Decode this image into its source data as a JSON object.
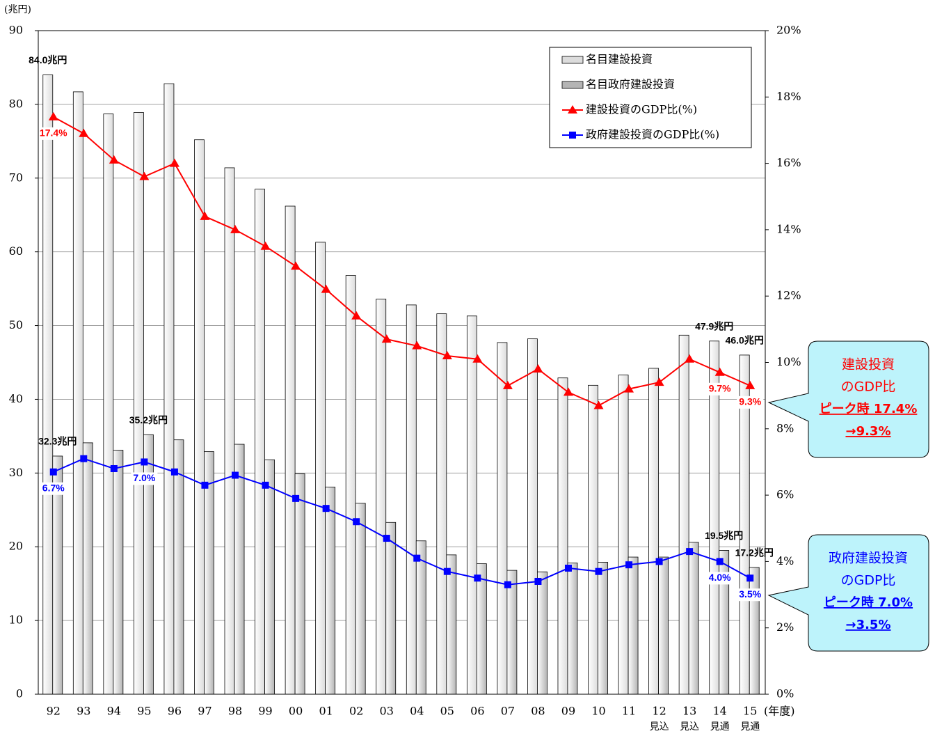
{
  "chart_data": {
    "type": "bar",
    "y_label": "(兆円)",
    "x_label": "(年度)",
    "categories": [
      "92",
      "93",
      "94",
      "95",
      "96",
      "97",
      "98",
      "99",
      "00",
      "01",
      "02",
      "03",
      "04",
      "05",
      "06",
      "07",
      "08",
      "09",
      "10",
      "11",
      "12",
      "13",
      "14",
      "15"
    ],
    "category_notes": [
      null,
      null,
      null,
      null,
      null,
      null,
      null,
      null,
      null,
      null,
      null,
      null,
      null,
      null,
      null,
      null,
      null,
      null,
      null,
      null,
      "見込",
      "見込",
      "見通",
      "見通"
    ],
    "ylim": [
      0,
      90
    ],
    "yticks": [
      0,
      10,
      20,
      30,
      40,
      50,
      60,
      70,
      80,
      90
    ],
    "y2lim": [
      0,
      20
    ],
    "y2ticks": [
      {
        "value": 0,
        "label": "0%"
      },
      {
        "value": 2,
        "label": "2%"
      },
      {
        "value": 4,
        "label": "4%"
      },
      {
        "value": 6,
        "label": "6%"
      },
      {
        "value": 8,
        "label": "8%"
      },
      {
        "value": 10,
        "label": "10%"
      },
      {
        "value": 12,
        "label": "12%"
      },
      {
        "value": 14,
        "label": "14%"
      },
      {
        "value": 16,
        "label": "16%"
      },
      {
        "value": 18,
        "label": "18%"
      },
      {
        "value": 20,
        "label": "20%"
      }
    ],
    "grid": true,
    "legend": "top-right",
    "series": [
      {
        "name": "名目建設投資",
        "type": "bar",
        "color": "#dcdcdc",
        "values": [
          84.0,
          81.7,
          78.7,
          78.9,
          82.8,
          75.2,
          71.4,
          68.5,
          66.2,
          61.3,
          56.8,
          53.6,
          52.8,
          51.6,
          51.3,
          47.7,
          48.2,
          42.9,
          41.9,
          43.3,
          44.2,
          48.7,
          47.9,
          46.0
        ],
        "value_labels": [
          "84.0兆円",
          null,
          null,
          null,
          null,
          null,
          null,
          null,
          null,
          null,
          null,
          null,
          null,
          null,
          null,
          null,
          null,
          null,
          null,
          null,
          null,
          null,
          "47.9兆円",
          "46.0兆円"
        ]
      },
      {
        "name": "名目政府建設投資",
        "type": "bar",
        "color": "#b4b4b4",
        "values": [
          32.3,
          34.1,
          33.1,
          35.2,
          34.5,
          32.9,
          33.9,
          31.8,
          29.9,
          28.1,
          25.9,
          23.3,
          20.8,
          18.9,
          17.7,
          16.8,
          16.6,
          17.8,
          17.9,
          18.6,
          18.6,
          20.6,
          19.5,
          17.2
        ],
        "value_labels": [
          "32.3兆円",
          null,
          null,
          "35.2兆円",
          null,
          null,
          null,
          null,
          null,
          null,
          null,
          null,
          null,
          null,
          null,
          null,
          null,
          null,
          null,
          null,
          null,
          null,
          "19.5兆円",
          "17.2兆円"
        ]
      },
      {
        "name": "建設投資のGDP比(%)",
        "type": "line",
        "axis": "y2",
        "color": "#ff0000",
        "marker": "triangle",
        "values": [
          17.4,
          16.9,
          16.1,
          15.6,
          16.0,
          14.4,
          14.0,
          13.5,
          12.9,
          12.2,
          11.4,
          10.7,
          10.5,
          10.2,
          10.1,
          9.3,
          9.8,
          9.1,
          8.7,
          9.2,
          9.4,
          10.1,
          9.7,
          9.3
        ],
        "value_labels": [
          "17.4%",
          null,
          null,
          null,
          null,
          null,
          null,
          null,
          null,
          null,
          null,
          null,
          null,
          null,
          null,
          null,
          null,
          null,
          null,
          null,
          null,
          null,
          "9.7%",
          "9.3%"
        ]
      },
      {
        "name": "政府建設投資のGDP比(%)",
        "type": "line",
        "axis": "y2",
        "color": "#0000ff",
        "marker": "square",
        "values": [
          6.7,
          7.1,
          6.8,
          7.0,
          6.7,
          6.3,
          6.6,
          6.3,
          5.9,
          5.6,
          5.2,
          4.7,
          4.1,
          3.7,
          3.5,
          3.3,
          3.4,
          3.8,
          3.7,
          3.9,
          4.0,
          4.3,
          4.0,
          3.5
        ],
        "value_labels": [
          "6.7%",
          null,
          null,
          "7.0%",
          null,
          null,
          null,
          null,
          null,
          null,
          null,
          null,
          null,
          null,
          null,
          null,
          null,
          null,
          null,
          null,
          null,
          null,
          "4.0%",
          "3.5%"
        ]
      }
    ],
    "annotations": [
      {
        "lines": [
          "建設投資",
          "のGDP比",
          "ピーク時 17.4%",
          "→9.3%"
        ],
        "color": "#ff0000"
      },
      {
        "lines": [
          "政府建設投資",
          "のGDP比",
          "ピーク時 7.0%",
          "→3.5%"
        ],
        "color": "#0000ff"
      }
    ]
  }
}
